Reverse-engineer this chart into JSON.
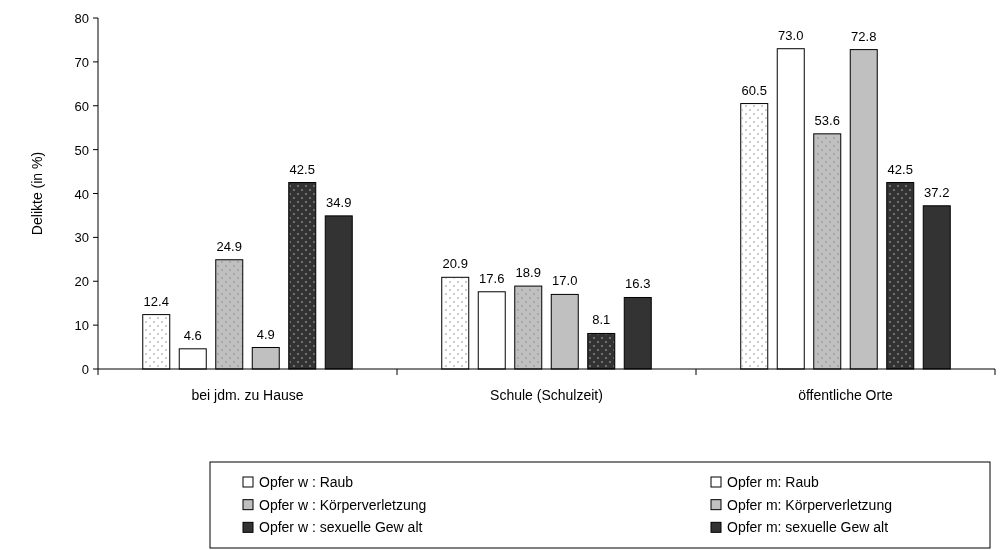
{
  "chart_data": {
    "type": "bar",
    "ylabel": "Delikte (in %)",
    "categories": [
      "bei jdm. zu Hause",
      "Schule (Schulzeit)",
      "öffentliche Orte"
    ],
    "series": [
      {
        "name": "Opfer w : Raub",
        "color": "#ffffff",
        "values": [
          12.4,
          20.9,
          60.5
        ],
        "value_labels": [
          "12.4",
          "20.9",
          "60.5"
        ]
      },
      {
        "name": "Opfer m: Raub",
        "color": "#ffffff",
        "values": [
          4.6,
          17.6,
          73.0
        ],
        "value_labels": [
          "4.6",
          "17.6",
          "73.0"
        ]
      },
      {
        "name": "Opfer w : Körperverletzung",
        "color": "#c0c0c0",
        "values": [
          24.9,
          18.9,
          53.6
        ],
        "value_labels": [
          "24.9",
          "18.9",
          "53.6"
        ]
      },
      {
        "name": "Opfer m: Körperverletzung",
        "color": "#c0c0c0",
        "values": [
          4.9,
          17.0,
          72.8
        ],
        "value_labels": [
          "4.9",
          "17.0",
          "72.8"
        ]
      },
      {
        "name": "Opfer w : sexuelle Gew alt",
        "color": "#333333",
        "values": [
          42.5,
          8.1,
          42.5
        ],
        "value_labels": [
          "42.5",
          "8.1",
          "42.5"
        ]
      },
      {
        "name": "Opfer m: sexuelle Gew alt",
        "color": "#333333",
        "values": [
          34.9,
          16.3,
          37.2
        ],
        "value_labels": [
          "34.9",
          "16.3",
          "37.2"
        ]
      }
    ],
    "ylim": [
      0,
      80
    ],
    "yticks": [
      0,
      10,
      20,
      30,
      40,
      50,
      60,
      70,
      80
    ],
    "grid": false,
    "legend": "bottom"
  }
}
